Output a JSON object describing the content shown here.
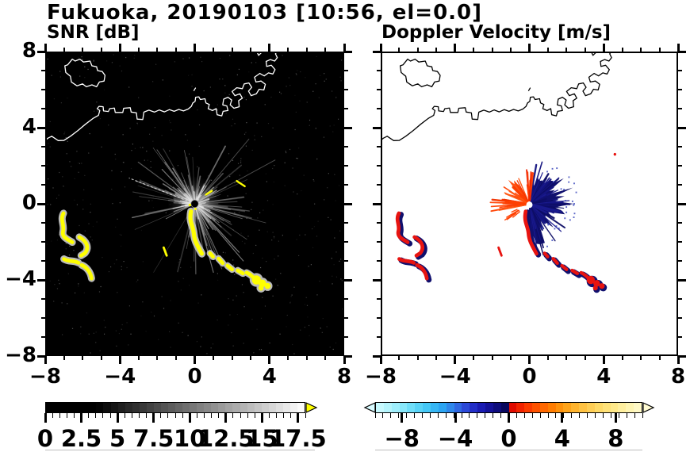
{
  "figure": {
    "title": "Fukuoka, 20190103 [10:56, el=0.0]",
    "background": "#ffffff"
  },
  "panels": [
    {
      "id": "snr",
      "label": "SNR [dB]",
      "plot_bg": "#000000",
      "coast_color": "#ffffff",
      "axis": {
        "min": -8,
        "max": 8,
        "minor_step": 1,
        "major_ticks": [
          -8,
          -4,
          0,
          4,
          8
        ],
        "x_tick_labels": [
          "−8",
          "−4",
          "0",
          "4",
          "8"
        ],
        "y_tick_labels": [
          "8",
          "4",
          "0",
          "−4",
          "−8"
        ]
      },
      "colorbar": {
        "min": 0,
        "max": 18,
        "cells": 36,
        "style": "grayscale",
        "black_until": 3.5,
        "over_arrow_color": "#ffff00",
        "labels": [
          {
            "v": 0,
            "t": "0"
          },
          {
            "v": 2.5,
            "t": "2.5"
          },
          {
            "v": 5,
            "t": "5"
          },
          {
            "v": 7.5,
            "t": "7.5"
          },
          {
            "v": 10,
            "t": "10"
          },
          {
            "v": 12.5,
            "t": "12.5"
          },
          {
            "v": 15,
            "t": "15"
          },
          {
            "v": 17.5,
            "t": "17.5"
          }
        ]
      }
    },
    {
      "id": "doppler",
      "label": "Doppler Velocity [m/s]",
      "plot_bg": "#ffffff",
      "coast_color": "#000000",
      "axis": {
        "min": -8,
        "max": 8,
        "minor_step": 1,
        "major_ticks": [
          -8,
          -4,
          0,
          4,
          8
        ],
        "x_tick_labels": [
          "−8",
          "−4",
          "0",
          "4",
          "8"
        ]
      },
      "colorbar": {
        "min": -10,
        "max": 10,
        "cells": 34,
        "style": "stops",
        "under_arrow_color": "#d8fbff",
        "over_arrow_color": "#fffbd2",
        "stops": [
          [
            -10,
            "#d0fbff"
          ],
          [
            -9,
            "#b0f3fc"
          ],
          [
            -8,
            "#8ae9fb"
          ],
          [
            -7,
            "#60d8f8"
          ],
          [
            -6,
            "#3ec3f5"
          ],
          [
            -5,
            "#2ba4f2"
          ],
          [
            -4.2,
            "#2f7ce8"
          ],
          [
            -3.5,
            "#2f55dd"
          ],
          [
            -2.8,
            "#2433cc"
          ],
          [
            -2.1,
            "#1a1cb4"
          ],
          [
            -1.4,
            "#131095"
          ],
          [
            -0.7,
            "#0c0a72"
          ],
          [
            -0.05,
            "#070650"
          ],
          [
            0.05,
            "#d80000"
          ],
          [
            0.7,
            "#ee1c00"
          ],
          [
            1.5,
            "#fb3c00"
          ],
          [
            2.3,
            "#ff5c00"
          ],
          [
            3.2,
            "#ff7c00"
          ],
          [
            4.1,
            "#ff9c10"
          ],
          [
            5,
            "#ffb42e"
          ],
          [
            6,
            "#ffcb50"
          ],
          [
            7,
            "#ffde6e"
          ],
          [
            8,
            "#ffea8c"
          ],
          [
            9,
            "#fff4ae"
          ],
          [
            10,
            "#fffbd0"
          ]
        ],
        "labels": [
          {
            "v": -8,
            "t": "−8"
          },
          {
            "v": -4,
            "t": "−4"
          },
          {
            "v": 0,
            "t": "0"
          },
          {
            "v": 4,
            "t": "4"
          },
          {
            "v": 8,
            "t": "8"
          }
        ]
      }
    }
  ],
  "palette": {
    "snr_high_yellow": "#ffff00",
    "snr_halo": "#b9b9b9",
    "doppler_red": "#e81410",
    "doppler_orange": "#ff4000",
    "doppler_navy": "#10106e",
    "coast_snr": "#ffffff",
    "coast_doppler": "#000000"
  },
  "chart_data": [
    {
      "type": "heatmap",
      "title": "SNR [dB]",
      "xlabel": "",
      "ylabel": "",
      "x_range": [
        -8,
        8
      ],
      "y_range": [
        -8,
        8
      ],
      "x_ticks": [
        -8,
        -4,
        0,
        4,
        8
      ],
      "y_ticks": [
        8,
        4,
        0,
        -4,
        -8
      ],
      "minor_tick_step": 1,
      "grid": false,
      "colorbar": {
        "range": [
          0,
          18
        ],
        "tick_labels": [
          0,
          2.5,
          5,
          7.5,
          10,
          12.5,
          15,
          17.5
        ],
        "colormap": "black-to-white grayscale",
        "over_range_color": "#ffff00",
        "position": "bottom"
      },
      "background_value_color": "#000000",
      "features": [
        "radar site at origin (0,0) with radial gray ground-clutter streaks out to ~4",
        "black no-data wedge toward the SSW of the radar",
        "yellow (>18 dB) echo band from origin south then southeast, ending near (4,-4.4)",
        "isolated yellow echo patches near (-7,-1), (-5.8,-2.2), (-6.6,-3), (-5.7,-3.6) and (-1.6,-2.5)",
        "white coastline: island near (-5.8,6.9), mainland shore from (-8,3.3) rising east, harbor piers from (1,4.6) to top edge near (4.4,8)"
      ]
    },
    {
      "type": "heatmap",
      "title": "Doppler Velocity [m/s]",
      "xlabel": "",
      "ylabel": "",
      "x_range": [
        -8,
        8
      ],
      "y_range": [
        -8,
        8
      ],
      "x_ticks": [
        -8,
        -4,
        0,
        4,
        8
      ],
      "y_ticks": [
        8,
        4,
        0,
        -4,
        -8
      ],
      "minor_tick_step": 1,
      "grid": false,
      "colorbar": {
        "range": [
          -10,
          10
        ],
        "tick_labels": [
          -8,
          -4,
          0,
          4,
          8
        ],
        "colormap": "pale cyan → blue → dark navy (negative), red → orange → pale yellow (positive)",
        "position": "bottom"
      },
      "background_value_color": "#ffffff",
      "features": [
        "orange/red (positive) velocity fan west, northwest and north of radar out to ~2.1",
        "dark navy (negative) velocity fan east-southeast of radar out to ~2.5 with spiky edge",
        "red echo arc south of radar from (-0.2,-0.4) to (0.4,-2.6) with navy fringe",
        "red/navy echo patches along trail to (4,-4.4) and at (-7,-1), (-5.8,-2.2), (-6.6,-3), (-5.7,-3.6)",
        "black coastline identical to SNR panel"
      ]
    }
  ]
}
